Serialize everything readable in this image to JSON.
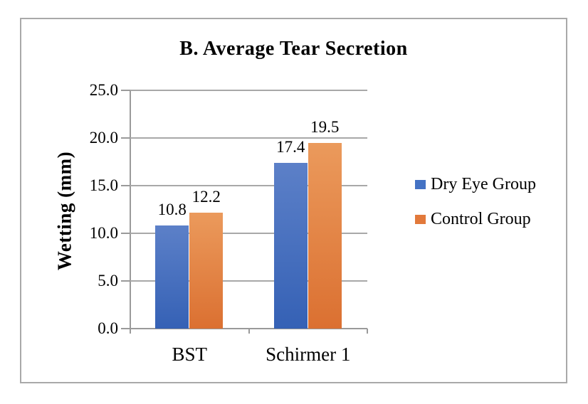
{
  "chart_data": {
    "type": "bar",
    "title": "B. Average Tear Secretion",
    "ylabel": "Wetting (mm)",
    "xlabel": "",
    "categories": [
      "BST",
      "Schirmer 1"
    ],
    "series": [
      {
        "name": "Dry Eye Group",
        "values": [
          10.8,
          17.4
        ],
        "labels": [
          "10.8",
          "17.4"
        ],
        "color": "#4472C4",
        "gradient_top": "#5C80C8",
        "gradient_bottom": "#3561B5"
      },
      {
        "name": "Control Group",
        "values": [
          12.2,
          19.5
        ],
        "labels": [
          "12.2",
          "19.5"
        ],
        "color": "#E2793B",
        "gradient_top": "#EB9A5C",
        "gradient_bottom": "#DB7031"
      }
    ],
    "ylim": [
      0,
      25
    ],
    "ytick_interval": 5,
    "ytick_labels": [
      "0.0",
      "5.0",
      "10.0",
      "15.0",
      "20.0",
      "25.0"
    ],
    "grid": true,
    "legend_position": "right"
  },
  "colors": {
    "gridline": "#a8a8a8",
    "axis": "#9a9a9a",
    "frame_border": "#a9a9a9",
    "text": "#000000"
  }
}
